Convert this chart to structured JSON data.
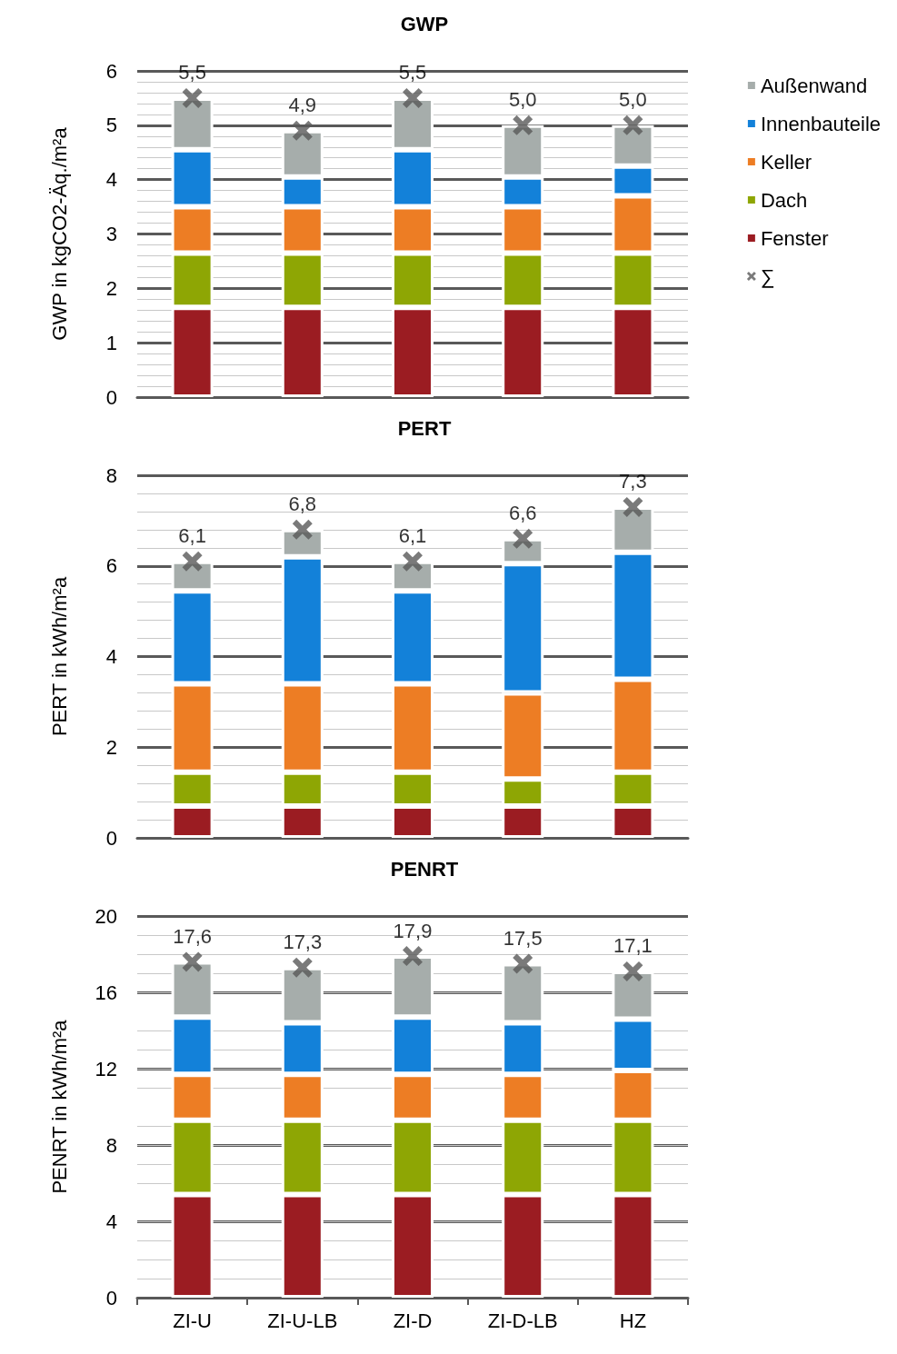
{
  "chart_data": [
    {
      "type": "bar",
      "title": "GWP",
      "ylabel": "GWP in kgCO2-Äq./m²a",
      "categories": [
        "ZI-U",
        "ZI-U-LB",
        "ZI-D",
        "ZI-D-LB",
        "HZ"
      ],
      "stacked": true,
      "ylim": [
        0,
        6
      ],
      "yticks": [
        0,
        1,
        2,
        3,
        4,
        5,
        6
      ],
      "grid": "y",
      "legend": "right",
      "tick_labels": "y",
      "series": [
        {
          "name": "Fenster",
          "color": "#9b1c22",
          "values": [
            1.65,
            1.65,
            1.65,
            1.65,
            1.65
          ]
        },
        {
          "name": "Dach",
          "color": "#8ea604",
          "values": [
            1.0,
            1.0,
            1.0,
            1.0,
            1.0
          ]
        },
        {
          "name": "Keller",
          "color": "#ed7d24",
          "values": [
            0.85,
            0.85,
            0.85,
            0.85,
            1.05
          ]
        },
        {
          "name": "Innenbauteile",
          "color": "#1381d9",
          "values": [
            1.05,
            0.55,
            1.05,
            0.55,
            0.55
          ]
        },
        {
          "name": "Außenwand",
          "color": "#a6adab",
          "values": [
            0.95,
            0.85,
            0.95,
            0.95,
            0.75
          ]
        },
        {
          "name": "∑",
          "type": "scatter",
          "marker": "cross",
          "color": "#595959",
          "x": [
            "ZI-U",
            "ZI-U-LB",
            "ZI-D",
            "ZI-D-LB",
            "HZ"
          ],
          "values": [
            5.5,
            4.9,
            5.5,
            5.0,
            5.0
          ],
          "value_labels": [
            "5,5",
            "4,9",
            "5,5",
            "5,0",
            "5,0"
          ]
        }
      ]
    },
    {
      "type": "bar",
      "title": "PERT",
      "ylabel": "PERT in kWh/m²a",
      "categories": [
        "ZI-U",
        "ZI-U-LB",
        "ZI-D",
        "ZI-D-LB",
        "HZ"
      ],
      "stacked": true,
      "ylim": [
        0,
        8
      ],
      "yticks": [
        0,
        2,
        4,
        6,
        8
      ],
      "grid": "y",
      "tick_labels": "y",
      "series": [
        {
          "color": "#9b1c22",
          "values": [
            0.7,
            0.7,
            0.7,
            0.7,
            0.7
          ]
        },
        {
          "color": "#8ea604",
          "values": [
            0.75,
            0.75,
            0.75,
            0.6,
            0.75
          ]
        },
        {
          "color": "#ed7d24",
          "values": [
            1.95,
            1.95,
            1.95,
            1.9,
            2.05
          ]
        },
        {
          "color": "#1381d9",
          "values": [
            2.05,
            2.8,
            2.05,
            2.85,
            2.8
          ]
        },
        {
          "color": "#a6adab",
          "values": [
            0.65,
            0.6,
            0.65,
            0.55,
            1.0
          ]
        },
        {
          "type": "scatter",
          "marker": "cross",
          "color": "#595959",
          "x": [
            "ZI-U",
            "ZI-U-LB",
            "ZI-D",
            "ZI-D-LB",
            "HZ"
          ],
          "values": [
            6.1,
            6.8,
            6.1,
            6.6,
            7.3
          ],
          "value_labels": [
            "6,1",
            "6,8",
            "6,1",
            "6,6",
            "7,3"
          ]
        }
      ]
    },
    {
      "type": "bar",
      "title": "PENRT",
      "ylabel": "PENRT in kWh/m²a",
      "categories": [
        "ZI-U",
        "ZI-U-LB",
        "ZI-D",
        "ZI-D-LB",
        "HZ"
      ],
      "stacked": true,
      "ylim": [
        0,
        20
      ],
      "yticks": [
        0,
        4,
        8,
        12,
        16,
        20
      ],
      "grid": "y",
      "series": [
        {
          "color": "#9b1c22",
          "values": [
            5.4,
            5.4,
            5.4,
            5.4,
            5.4
          ]
        },
        {
          "color": "#8ea604",
          "values": [
            3.9,
            3.9,
            3.9,
            3.9,
            3.9
          ]
        },
        {
          "color": "#ed7d24",
          "values": [
            2.4,
            2.4,
            2.4,
            2.4,
            2.6
          ]
        },
        {
          "color": "#1381d9",
          "values": [
            3.0,
            2.7,
            3.0,
            2.7,
            2.7
          ]
        },
        {
          "color": "#a6adab",
          "values": [
            2.9,
            2.9,
            3.2,
            3.1,
            2.5
          ]
        },
        {
          "type": "scatter",
          "marker": "cross",
          "color": "#595959",
          "x": [
            "ZI-U",
            "ZI-U-LB",
            "ZI-D",
            "ZI-D-LB",
            "HZ"
          ],
          "values": [
            17.6,
            17.3,
            17.9,
            17.5,
            17.1
          ],
          "value_labels": [
            "17,6",
            "17,3",
            "17,9",
            "17,5",
            "17,1"
          ]
        }
      ]
    }
  ]
}
